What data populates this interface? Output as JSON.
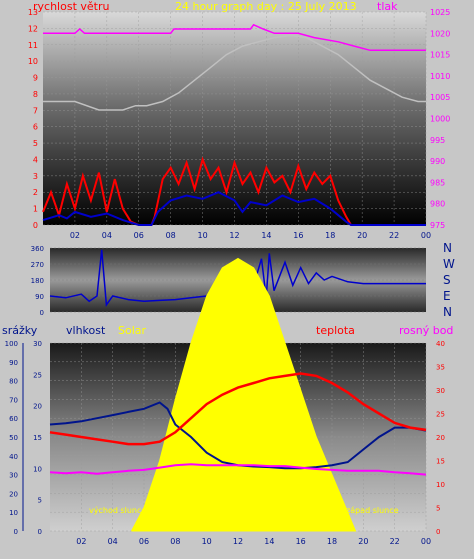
{
  "header": {
    "left": "rychlost větru",
    "center": "24 hour graph day : 25 July 2013",
    "right": "tlak"
  },
  "compass_labels": [
    "N",
    "W",
    "S",
    "E",
    "N"
  ],
  "bottom_header": {
    "rain": "srážky",
    "humidity": "vlhkost",
    "solar": "Solar",
    "temperature": "teplota",
    "dewpoint": "rosný bod"
  },
  "annotations": {
    "sunrise": "východ slunce",
    "sunset": "západ slunce"
  },
  "colors": {
    "wind": "#ff0000",
    "gust_avg": "#0000cc",
    "pressure": "#ff00ff",
    "humidity": "#00148c",
    "solar": "#ffff00",
    "temperature": "#ff0000",
    "dewpoint": "#ff00ff",
    "header_left": "#ff0000",
    "header_center": "#ffff00",
    "header_right": "#ff00ff"
  },
  "chart_data": [
    {
      "type": "line",
      "name": "wind-pressure",
      "x_ticks": [
        "02",
        "04",
        "06",
        "08",
        "10",
        "12",
        "14",
        "16",
        "18",
        "20",
        "22",
        "00"
      ],
      "y_left_ticks": [
        "0",
        "1",
        "2",
        "3",
        "4",
        "5",
        "6",
        "7",
        "8",
        "9",
        "10",
        "11",
        "12",
        "13"
      ],
      "y_left_lim": [
        0,
        13
      ],
      "y_right_ticks": [
        "975",
        "980",
        "985",
        "990",
        "995",
        "1000",
        "1005",
        "1010",
        "1015",
        "1020",
        "1025"
      ],
      "y_right_lim": [
        975,
        1025
      ],
      "xlim": [
        0,
        24
      ],
      "pressure": [
        [
          0,
          1020
        ],
        [
          2,
          1020
        ],
        [
          2.3,
          1021
        ],
        [
          2.6,
          1020
        ],
        [
          6,
          1020
        ],
        [
          8,
          1020
        ],
        [
          8.2,
          1021
        ],
        [
          13,
          1021
        ],
        [
          13.2,
          1022
        ],
        [
          13.8,
          1021
        ],
        [
          14.5,
          1020
        ],
        [
          16,
          1020
        ],
        [
          17,
          1019
        ],
        [
          18.5,
          1018
        ],
        [
          19.5,
          1017
        ],
        [
          20.5,
          1016
        ],
        [
          24,
          1016
        ]
      ],
      "temperature_ghost": [
        [
          0,
          1004
        ],
        [
          2,
          1004
        ],
        [
          3.5,
          1002
        ],
        [
          5,
          1002
        ],
        [
          5.8,
          1003
        ],
        [
          6.5,
          1003
        ],
        [
          7.5,
          1004
        ],
        [
          8.5,
          1006
        ],
        [
          9.5,
          1009
        ],
        [
          10.5,
          1012
        ],
        [
          11.5,
          1015
        ],
        [
          12.5,
          1017
        ],
        [
          13.5,
          1018
        ],
        [
          14.5,
          1019
        ],
        [
          15.5,
          1019.5
        ],
        [
          16.5,
          1019
        ],
        [
          17.5,
          1017
        ],
        [
          18.5,
          1015
        ],
        [
          19.5,
          1012
        ],
        [
          20.5,
          1009
        ],
        [
          21.5,
          1007
        ],
        [
          22.5,
          1005
        ],
        [
          23.5,
          1004
        ],
        [
          24,
          1004
        ]
      ],
      "wind": [
        [
          0,
          0.8
        ],
        [
          0.5,
          2
        ],
        [
          1,
          0.6
        ],
        [
          1.5,
          2.5
        ],
        [
          2,
          1
        ],
        [
          2.5,
          3
        ],
        [
          3,
          1.5
        ],
        [
          3.5,
          3.2
        ],
        [
          4,
          0.8
        ],
        [
          4.5,
          2.8
        ],
        [
          5,
          1
        ],
        [
          5.5,
          0.2
        ],
        [
          6,
          0
        ],
        [
          6.8,
          0
        ],
        [
          7,
          0.5
        ],
        [
          7.5,
          2.8
        ],
        [
          8,
          3.5
        ],
        [
          8.5,
          2.5
        ],
        [
          9,
          3.8
        ],
        [
          9.5,
          2.2
        ],
        [
          10,
          4
        ],
        [
          10.5,
          2.8
        ],
        [
          11,
          3.5
        ],
        [
          11.5,
          2
        ],
        [
          12,
          3.8
        ],
        [
          12.5,
          2.5
        ],
        [
          13,
          3.2
        ],
        [
          13.5,
          2
        ],
        [
          14,
          3.5
        ],
        [
          14.5,
          2.6
        ],
        [
          15,
          3
        ],
        [
          15.5,
          2
        ],
        [
          16,
          3.6
        ],
        [
          16.5,
          2.2
        ],
        [
          17,
          3.2
        ],
        [
          17.5,
          2.5
        ],
        [
          18,
          3
        ],
        [
          18.5,
          1.5
        ],
        [
          19,
          0.5
        ],
        [
          19.3,
          0
        ],
        [
          24,
          0
        ]
      ],
      "avg_wind": [
        [
          0,
          0.3
        ],
        [
          1,
          0.6
        ],
        [
          1.5,
          0.4
        ],
        [
          2,
          0.8
        ],
        [
          3,
          0.5
        ],
        [
          4,
          0.7
        ],
        [
          5,
          0.3
        ],
        [
          6,
          0
        ],
        [
          6.8,
          0
        ],
        [
          7.2,
          0.8
        ],
        [
          8,
          1.5
        ],
        [
          9,
          1.8
        ],
        [
          10,
          1.6
        ],
        [
          11,
          2
        ],
        [
          12,
          1.5
        ],
        [
          12.5,
          0.8
        ],
        [
          13,
          1.4
        ],
        [
          14,
          1.2
        ],
        [
          15,
          1.8
        ],
        [
          16,
          1.4
        ],
        [
          17,
          1.6
        ],
        [
          18,
          1
        ],
        [
          19,
          0.2
        ],
        [
          19.3,
          0
        ],
        [
          24,
          0
        ]
      ]
    },
    {
      "type": "line",
      "name": "wind-direction",
      "y_ticks": [
        "360",
        "270",
        "180",
        "90",
        "0"
      ],
      "ylim": [
        0,
        360
      ],
      "xlim": [
        0,
        24
      ],
      "direction": [
        [
          0,
          90
        ],
        [
          1,
          80
        ],
        [
          2,
          100
        ],
        [
          2.5,
          60
        ],
        [
          3,
          90
        ],
        [
          3.3,
          350
        ],
        [
          3.6,
          40
        ],
        [
          4,
          90
        ],
        [
          5,
          70
        ],
        [
          6,
          60
        ],
        [
          7,
          65
        ],
        [
          8,
          70
        ],
        [
          9,
          80
        ],
        [
          10,
          90
        ],
        [
          11,
          100
        ],
        [
          12,
          110
        ],
        [
          12.5,
          250
        ],
        [
          12.8,
          90
        ],
        [
          13.5,
          300
        ],
        [
          13.8,
          80
        ],
        [
          14,
          330
        ],
        [
          14.3,
          120
        ],
        [
          15,
          280
        ],
        [
          15.5,
          150
        ],
        [
          16,
          250
        ],
        [
          16.5,
          160
        ],
        [
          17,
          220
        ],
        [
          17.5,
          180
        ],
        [
          18,
          200
        ],
        [
          19,
          170
        ],
        [
          20,
          160
        ],
        [
          24,
          160
        ]
      ]
    },
    {
      "type": "line",
      "name": "humidity-solar-temperature",
      "x_ticks": [
        "02",
        "04",
        "06",
        "08",
        "10",
        "12",
        "14",
        "16",
        "18",
        "20",
        "22",
        "00"
      ],
      "y_rain_ticks": [
        "0",
        "10",
        "20",
        "30",
        "40",
        "50",
        "60",
        "70",
        "80",
        "90",
        "100"
      ],
      "y_rain_lim": [
        0,
        100
      ],
      "y_humidity_ticks": [
        "0",
        "5",
        "10",
        "15",
        "20",
        "25",
        "30"
      ],
      "y_humidity_lim": [
        0,
        30
      ],
      "y_temp_ticks": [
        "0",
        "5",
        "10",
        "15",
        "20",
        "25",
        "30",
        "35",
        "40"
      ],
      "y_temp_lim": [
        0,
        40
      ],
      "xlim": [
        0,
        24
      ],
      "humidity": [
        [
          0,
          17
        ],
        [
          1,
          17.2
        ],
        [
          2,
          17.5
        ],
        [
          3,
          18
        ],
        [
          4,
          18.5
        ],
        [
          5,
          19
        ],
        [
          6,
          19.5
        ],
        [
          7,
          20.5
        ],
        [
          7.5,
          19.5
        ],
        [
          8,
          17
        ],
        [
          9,
          15
        ],
        [
          10,
          12.5
        ],
        [
          11,
          11
        ],
        [
          12,
          10.5
        ],
        [
          13,
          10.3
        ],
        [
          14,
          10.2
        ],
        [
          15,
          10
        ],
        [
          16,
          10
        ],
        [
          17,
          10.2
        ],
        [
          18,
          10.5
        ],
        [
          19,
          11
        ],
        [
          20,
          13
        ],
        [
          21,
          15
        ],
        [
          22,
          16.5
        ],
        [
          23,
          16.5
        ],
        [
          24,
          16
        ]
      ],
      "temperature": [
        [
          0,
          21
        ],
        [
          1,
          20.5
        ],
        [
          2,
          20
        ],
        [
          3,
          19.5
        ],
        [
          4,
          19
        ],
        [
          5,
          18.5
        ],
        [
          6,
          18.5
        ],
        [
          7,
          19
        ],
        [
          8,
          21
        ],
        [
          9,
          24
        ],
        [
          10,
          27
        ],
        [
          11,
          29
        ],
        [
          12,
          30.5
        ],
        [
          13,
          31.5
        ],
        [
          14,
          32.5
        ],
        [
          15,
          33
        ],
        [
          16,
          33.5
        ],
        [
          17,
          33
        ],
        [
          18,
          31.5
        ],
        [
          19,
          29.5
        ],
        [
          20,
          27
        ],
        [
          21,
          25
        ],
        [
          22,
          23
        ],
        [
          23,
          22
        ],
        [
          24,
          21.5
        ]
      ],
      "dewpoint": [
        [
          0,
          12.5
        ],
        [
          1,
          12.3
        ],
        [
          2,
          12.5
        ],
        [
          3,
          12.2
        ],
        [
          4,
          12.5
        ],
        [
          5,
          12.8
        ],
        [
          6,
          13
        ],
        [
          7,
          13.5
        ],
        [
          8,
          14
        ],
        [
          9,
          14.2
        ],
        [
          10,
          14
        ],
        [
          11,
          14
        ],
        [
          12,
          14
        ],
        [
          13,
          14
        ],
        [
          14,
          13.8
        ],
        [
          15,
          13.8
        ],
        [
          16,
          13.5
        ],
        [
          17,
          13.2
        ],
        [
          18,
          13
        ],
        [
          19,
          12.8
        ],
        [
          20,
          12.8
        ],
        [
          21,
          12.8
        ],
        [
          22,
          12.5
        ],
        [
          23,
          12.3
        ],
        [
          24,
          12
        ]
      ],
      "solar": [
        [
          5.2,
          0
        ],
        [
          6,
          5
        ],
        [
          7,
          15
        ],
        [
          8,
          28
        ],
        [
          9,
          40
        ],
        [
          10,
          50
        ],
        [
          11,
          56
        ],
        [
          12,
          58
        ],
        [
          13,
          56
        ],
        [
          14,
          50
        ],
        [
          15,
          40
        ],
        [
          16,
          30
        ],
        [
          17,
          20
        ],
        [
          18,
          12
        ],
        [
          19,
          4
        ],
        [
          19.5,
          0
        ]
      ]
    }
  ]
}
